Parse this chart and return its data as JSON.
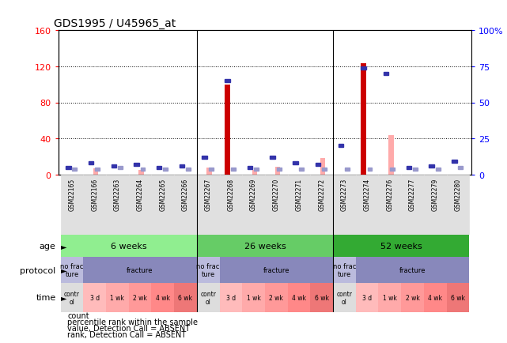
{
  "title": "GDS1995 / U45965_at",
  "samples": [
    "GSM22165",
    "GSM22166",
    "GSM22263",
    "GSM22264",
    "GSM22265",
    "GSM22266",
    "GSM22267",
    "GSM22268",
    "GSM22269",
    "GSM22270",
    "GSM22271",
    "GSM22272",
    "GSM22273",
    "GSM22274",
    "GSM22276",
    "GSM22277",
    "GSM22279",
    "GSM22280"
  ],
  "count_values": [
    0,
    0,
    0,
    0,
    0,
    0,
    0,
    100,
    0,
    0,
    0,
    0,
    0,
    123,
    0,
    0,
    0,
    0
  ],
  "rank_values": [
    5,
    8,
    6,
    7,
    5,
    6,
    12,
    65,
    5,
    12,
    8,
    7,
    20,
    74,
    70,
    5,
    6,
    9
  ],
  "value_absent": [
    0,
    7,
    0,
    5,
    0,
    0,
    8,
    0,
    5,
    9,
    0,
    18,
    0,
    0,
    44,
    0,
    0,
    0
  ],
  "rank_absent": [
    4,
    4,
    5,
    4,
    4,
    4,
    4,
    4,
    4,
    4,
    4,
    4,
    4,
    4,
    4,
    4,
    4,
    5
  ],
  "ylim_left": [
    0,
    160
  ],
  "ylim_right": [
    0,
    100
  ],
  "yticks_left": [
    0,
    40,
    80,
    120,
    160
  ],
  "yticks_right": [
    0,
    25,
    50,
    75,
    100
  ],
  "ytick_labels_right": [
    "0",
    "25",
    "50",
    "75",
    "100%"
  ],
  "age_groups": [
    {
      "label": "6 weeks",
      "start": 0,
      "end": 6
    },
    {
      "label": "26 weeks",
      "start": 6,
      "end": 12
    },
    {
      "label": "52 weeks",
      "start": 12,
      "end": 18
    }
  ],
  "age_colors": [
    "#90EE90",
    "#66CC66",
    "#33AA33"
  ],
  "protocol_groups": [
    {
      "label": "no frac\nture",
      "start": 0,
      "end": 1,
      "color": "#BBBBDD"
    },
    {
      "label": "fracture",
      "start": 1,
      "end": 6,
      "color": "#8888BB"
    },
    {
      "label": "no frac\nture",
      "start": 6,
      "end": 7,
      "color": "#BBBBDD"
    },
    {
      "label": "fracture",
      "start": 7,
      "end": 12,
      "color": "#8888BB"
    },
    {
      "label": "no frac\nture",
      "start": 12,
      "end": 13,
      "color": "#BBBBDD"
    },
    {
      "label": "fracture",
      "start": 13,
      "end": 18,
      "color": "#8888BB"
    }
  ],
  "time_groups": [
    {
      "label": "contr\nol",
      "start": 0,
      "end": 1,
      "color": "#DDDDDD"
    },
    {
      "label": "3 d",
      "start": 1,
      "end": 2,
      "color": "#FFBBBB"
    },
    {
      "label": "1 wk",
      "start": 2,
      "end": 3,
      "color": "#FFAAAA"
    },
    {
      "label": "2 wk",
      "start": 3,
      "end": 4,
      "color": "#FF9999"
    },
    {
      "label": "4 wk",
      "start": 4,
      "end": 5,
      "color": "#FF8888"
    },
    {
      "label": "6 wk",
      "start": 5,
      "end": 6,
      "color": "#EE7777"
    },
    {
      "label": "contr\nol",
      "start": 6,
      "end": 7,
      "color": "#DDDDDD"
    },
    {
      "label": "3 d",
      "start": 7,
      "end": 8,
      "color": "#FFBBBB"
    },
    {
      "label": "1 wk",
      "start": 8,
      "end": 9,
      "color": "#FFAAAA"
    },
    {
      "label": "2 wk",
      "start": 9,
      "end": 10,
      "color": "#FF9999"
    },
    {
      "label": "4 wk",
      "start": 10,
      "end": 11,
      "color": "#FF8888"
    },
    {
      "label": "6 wk",
      "start": 11,
      "end": 12,
      "color": "#EE7777"
    },
    {
      "label": "contr\nol",
      "start": 12,
      "end": 13,
      "color": "#DDDDDD"
    },
    {
      "label": "3 d",
      "start": 13,
      "end": 14,
      "color": "#FFBBBB"
    },
    {
      "label": "1 wk",
      "start": 14,
      "end": 15,
      "color": "#FFAAAA"
    },
    {
      "label": "2 wk",
      "start": 15,
      "end": 16,
      "color": "#FF9999"
    },
    {
      "label": "4 wk",
      "start": 16,
      "end": 17,
      "color": "#FF8888"
    },
    {
      "label": "6 wk",
      "start": 17,
      "end": 18,
      "color": "#EE7777"
    }
  ],
  "bar_color_red": "#CC0000",
  "bar_color_pink": "#FFAAAA",
  "bar_color_blue": "#3333AA",
  "bar_color_lightblue": "#9999CC",
  "legend_items": [
    {
      "label": "count",
      "color": "#CC0000"
    },
    {
      "label": "percentile rank within the sample",
      "color": "#3333AA"
    },
    {
      "label": "value, Detection Call = ABSENT",
      "color": "#FFAAAA"
    },
    {
      "label": "rank, Detection Call = ABSENT",
      "color": "#9999CC"
    }
  ]
}
